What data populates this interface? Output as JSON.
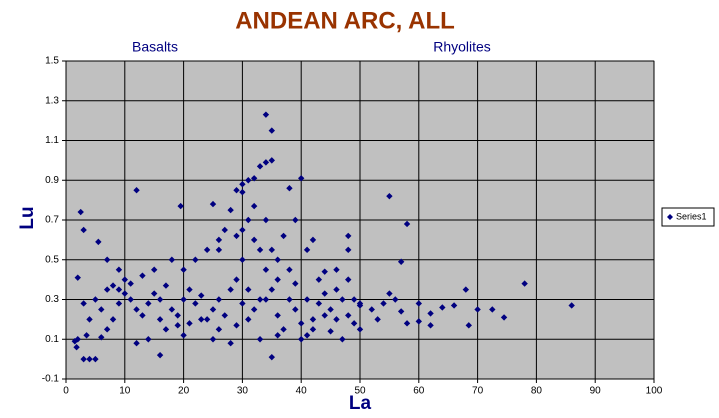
{
  "chart_data": {
    "type": "scatter",
    "title": "ANDEAN ARC, ALL",
    "annotations": [
      "Basalts",
      "Rhyolites"
    ],
    "x_label": "La",
    "y_label": "Lu",
    "xlim": [
      0,
      100
    ],
    "xticks": [
      0,
      10,
      20,
      30,
      40,
      50,
      60,
      70,
      80,
      90,
      100
    ],
    "ylim": [
      -0.1,
      1.5
    ],
    "yticks": [
      -0.1,
      0.1,
      0.3,
      0.5,
      0.7,
      0.9,
      1.1,
      1.3,
      1.5
    ],
    "grid": true,
    "legend": "right",
    "x": [
      34,
      35,
      33,
      34,
      35,
      29,
      30,
      31,
      32,
      40,
      38,
      12,
      19.5,
      25,
      55,
      58,
      2.5,
      3,
      5.5,
      2,
      57,
      78,
      86,
      68,
      70,
      72.5,
      74.5,
      68.5,
      66,
      64,
      62,
      60,
      60,
      58,
      55,
      56,
      52,
      50,
      48,
      48,
      46,
      42,
      44,
      4,
      3,
      5,
      16,
      35,
      1.5,
      1.8,
      2,
      3.5,
      6,
      7,
      8,
      9,
      10,
      10,
      8,
      9,
      11,
      12,
      13,
      14,
      15,
      16,
      17,
      18,
      19,
      20,
      21,
      22,
      23,
      24,
      25,
      26,
      27,
      28,
      29,
      30,
      31,
      32,
      33,
      34,
      35,
      36,
      37,
      38,
      39,
      40,
      41,
      42,
      43,
      44,
      45,
      46,
      47,
      48,
      49,
      50,
      15,
      18,
      20,
      22,
      24,
      26,
      27,
      28,
      30,
      31,
      32,
      33,
      36,
      37,
      38,
      39,
      41,
      43,
      12,
      14,
      20,
      25,
      28,
      33,
      36,
      40,
      42,
      45,
      47,
      50,
      5,
      6,
      7,
      4,
      3,
      7,
      9,
      11,
      13,
      16,
      17,
      19,
      21,
      23,
      26,
      29,
      30,
      31,
      34,
      35,
      36,
      39,
      41,
      44,
      46,
      48,
      49,
      53,
      54,
      57,
      62,
      26,
      29,
      32,
      30,
      34
    ],
    "series": [
      {
        "name": "Series1",
        "color": "#000080",
        "values": [
          1.23,
          1.15,
          0.97,
          0.99,
          1.0,
          0.85,
          0.84,
          0.9,
          0.91,
          0.91,
          0.86,
          0.85,
          0.77,
          0.78,
          0.82,
          0.68,
          0.74,
          0.65,
          0.59,
          0.41,
          0.49,
          0.38,
          0.27,
          0.35,
          0.25,
          0.25,
          0.21,
          0.17,
          0.27,
          0.26,
          0.17,
          0.28,
          0.19,
          0.18,
          0.33,
          0.3,
          0.25,
          0.28,
          0.55,
          0.62,
          0.45,
          0.6,
          0.44,
          0.0,
          0.0,
          0.0,
          0.02,
          0.01,
          0.09,
          0.06,
          0.1,
          0.12,
          0.11,
          0.15,
          0.2,
          0.28,
          0.33,
          0.4,
          0.37,
          0.35,
          0.3,
          0.25,
          0.22,
          0.28,
          0.33,
          0.3,
          0.37,
          0.25,
          0.22,
          0.3,
          0.35,
          0.28,
          0.32,
          0.2,
          0.25,
          0.3,
          0.22,
          0.35,
          0.4,
          0.28,
          0.2,
          0.25,
          0.3,
          0.45,
          0.35,
          0.22,
          0.15,
          0.3,
          0.25,
          0.18,
          0.12,
          0.2,
          0.28,
          0.33,
          0.25,
          0.2,
          0.3,
          0.22,
          0.18,
          0.27,
          0.45,
          0.5,
          0.45,
          0.5,
          0.55,
          0.6,
          0.65,
          0.75,
          0.65,
          0.7,
          0.6,
          0.55,
          0.5,
          0.62,
          0.45,
          0.7,
          0.55,
          0.4,
          0.08,
          0.1,
          0.12,
          0.1,
          0.08,
          0.1,
          0.12,
          0.1,
          0.15,
          0.14,
          0.1,
          0.15,
          0.3,
          0.25,
          0.35,
          0.2,
          0.28,
          0.5,
          0.45,
          0.38,
          0.42,
          0.2,
          0.15,
          0.17,
          0.18,
          0.2,
          0.15,
          0.17,
          0.5,
          0.35,
          0.3,
          0.55,
          0.4,
          0.38,
          0.3,
          0.22,
          0.35,
          0.4,
          0.3,
          0.2,
          0.28,
          0.24,
          0.23,
          0.55,
          0.62,
          0.77,
          0.88,
          0.7
        ]
      }
    ]
  }
}
